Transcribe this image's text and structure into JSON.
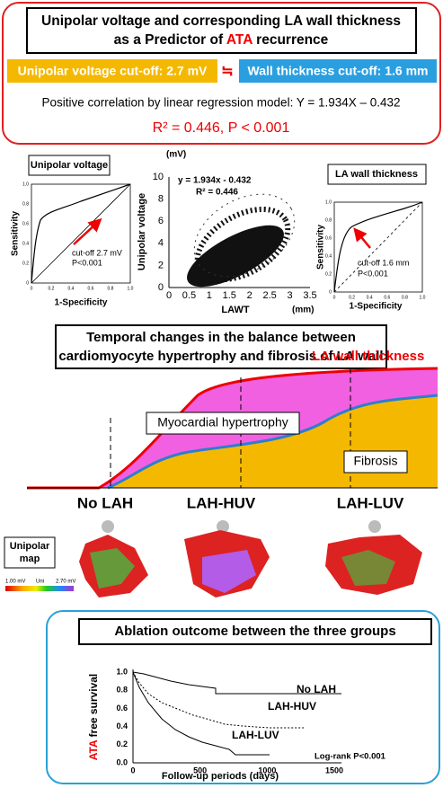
{
  "header": {
    "title_line1": "Unipolar voltage and corresponding LA wall thickness",
    "title_line2_pre": "as a Predictor of ",
    "title_line2_ata": "ATA",
    "title_line2_post": " recurrence",
    "voltage_cutoff": "Unipolar voltage cut-off: 2.7 mV",
    "approx": "≒",
    "thickness_cutoff": "Wall thickness cut-off: 1.6 mm",
    "correlation": "Positive correlation  by linear regression model: Y = 1.934X – 0.432",
    "r2": "R² = 0.446, P < 0.001"
  },
  "roc_voltage": {
    "label": "Unipolar voltage",
    "ylabel": "Sensitivity",
    "xlabel": "1-Specificity",
    "note1": "cut-off 2.7 mV",
    "note2": "P<0.001",
    "ticks": [
      "0",
      "0.2",
      "0.4",
      "0.6",
      "0.8",
      "1.0"
    ]
  },
  "scatter": {
    "unit_y": "(mV)",
    "ylabel": "Unipolar voltage",
    "xlabel": "LAWT",
    "unit_x": "(mm)",
    "equation": "y = 1.934x - 0.432",
    "r2": "R² = 0.446",
    "xticks": [
      "0",
      "0.5",
      "1",
      "1.5",
      "2",
      "2.5",
      "3",
      "3.5"
    ],
    "yticks": [
      "0",
      "2",
      "4",
      "6",
      "8",
      "10"
    ]
  },
  "roc_thickness": {
    "label": "LA wall thickness",
    "ylabel": "Sensitivity",
    "xlabel": "1-Specificity",
    "note1": "cut-off 1.6 mm",
    "note2": "P<0.001",
    "ticks": [
      "0",
      "0.2",
      "0.4",
      "0.6",
      "0.8",
      "1.0"
    ]
  },
  "temporal": {
    "title_line1": "Temporal changes in the balance between",
    "title_line2": "cardiomyocyte hypertrophy and fibrosis of LA wall",
    "wall": "LA wall thickness",
    "hypertrophy": "Myocardial hypertrophy",
    "fibrosis": "Fibrosis"
  },
  "groups": {
    "g1": "No LAH",
    "g2": "LAH-HUV",
    "g3": "LAH-LUV",
    "map_label_1": "Unipolar",
    "map_label_2": "map",
    "scale_min": "1.00 mV",
    "scale_mid": "Uni",
    "scale_max": "2.70 mV"
  },
  "outcome": {
    "title": "Ablation outcome between the three groups",
    "ylabel_ata": "ATA",
    "ylabel_rest": " free survival",
    "xlabel": "Follow-up periods (days)",
    "yticks": [
      "0.0",
      "0.2",
      "0.4",
      "0.6",
      "0.8",
      "1.0"
    ],
    "xticks": [
      "0",
      "500",
      "1000",
      "1500"
    ],
    "curve1": "No LAH",
    "curve2": "LAH-HUV",
    "curve3": "LAH-LUV",
    "logrank": "Log-rank P<0.001"
  }
}
